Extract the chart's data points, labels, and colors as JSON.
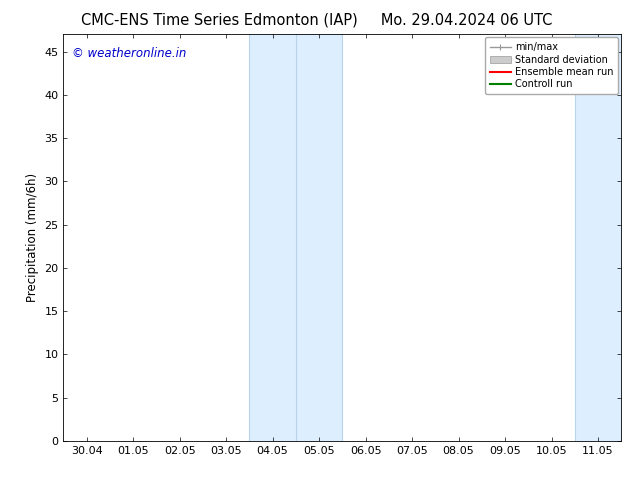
{
  "title_left": "CMC-ENS Time Series Edmonton (IAP)",
  "title_right": "Mo. 29.04.2024 06 UTC",
  "ylabel": "Precipitation (mm/6h)",
  "ylim": [
    0,
    47
  ],
  "yticks": [
    0,
    5,
    10,
    15,
    20,
    25,
    30,
    35,
    40,
    45
  ],
  "xtick_labels": [
    "30.04",
    "01.05",
    "02.05",
    "03.05",
    "04.05",
    "05.05",
    "06.05",
    "07.05",
    "08.05",
    "09.05",
    "10.05",
    "11.05"
  ],
  "xtick_positions": [
    1,
    2,
    3,
    4,
    5,
    6,
    7,
    8,
    9,
    10,
    11,
    12
  ],
  "xlim": [
    0.5,
    12.5
  ],
  "shaded_bands": [
    {
      "xmin": 4.5,
      "xmax": 6.5,
      "color": "#ddeeff"
    },
    {
      "xmin": 11.5,
      "xmax": 12.5,
      "color": "#ddeeff"
    }
  ],
  "inner_vlines": [
    {
      "x": 5.5,
      "color": "#b8d4e8",
      "lw": 0.8
    },
    {
      "x": 12.5,
      "color": "#b8d4e8",
      "lw": 0.8
    }
  ],
  "band_border_lines": [
    {
      "x": 4.5,
      "color": "#b8d4e8",
      "lw": 0.8
    },
    {
      "x": 6.5,
      "color": "#b8d4e8",
      "lw": 0.8
    },
    {
      "x": 11.5,
      "color": "#b8d4e8",
      "lw": 0.8
    }
  ],
  "legend_entries": [
    {
      "label": "min/max",
      "color": "#999999",
      "lw": 1.0,
      "type": "line_with_caps"
    },
    {
      "label": "Standard deviation",
      "color": "#cccccc",
      "lw": 6,
      "type": "band"
    },
    {
      "label": "Ensemble mean run",
      "color": "#ff0000",
      "lw": 1.5,
      "type": "line"
    },
    {
      "label": "Controll run",
      "color": "#008000",
      "lw": 1.5,
      "type": "line"
    }
  ],
  "watermark_text": "© weatheronline.in",
  "watermark_color": "#0000cc",
  "watermark_fontsize": 8.5,
  "bg_color": "#ffffff",
  "plot_bg_color": "#ffffff",
  "title_fontsize": 10.5,
  "axis_fontsize": 8,
  "ylabel_fontsize": 8.5
}
